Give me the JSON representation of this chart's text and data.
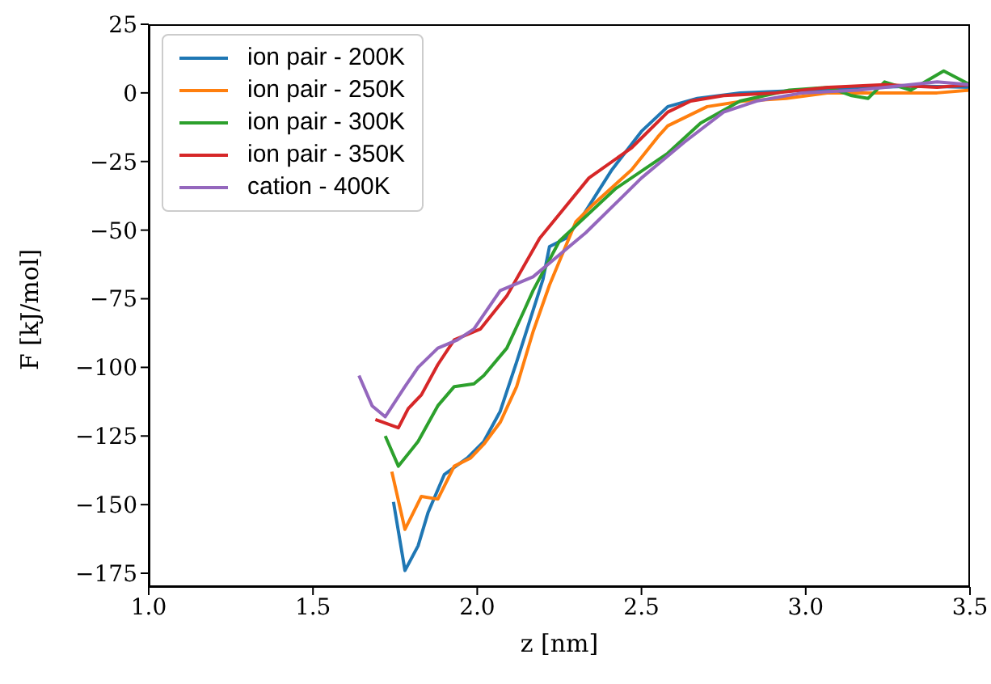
{
  "chart_data": {
    "type": "line",
    "xlabel": "z [nm]",
    "ylabel": "F [kJ/mol]",
    "xlim": [
      1.0,
      3.5
    ],
    "ylim": [
      -180,
      25
    ],
    "xticks": [
      {
        "value": 1.0,
        "label": "1.0"
      },
      {
        "value": 1.5,
        "label": "1.5"
      },
      {
        "value": 2.0,
        "label": "2.0"
      },
      {
        "value": 2.5,
        "label": "2.5"
      },
      {
        "value": 3.0,
        "label": "3.0"
      },
      {
        "value": 3.5,
        "label": "3.5"
      }
    ],
    "yticks": [
      -175,
      -150,
      -125,
      -100,
      -75,
      -50,
      -25,
      0,
      25
    ],
    "grid": false,
    "legend": "top left",
    "marker": "none",
    "line_style": "solid",
    "series": [
      {
        "name": "ion pair - 200K",
        "color": "#1f77b4",
        "x": [
          1.745,
          1.78,
          1.82,
          1.85,
          1.9,
          1.97,
          2.02,
          2.07,
          2.12,
          2.16,
          2.2,
          2.22,
          2.27,
          2.32,
          2.41,
          2.5,
          2.58,
          2.67,
          2.8,
          3.0,
          3.2,
          3.35,
          3.5
        ],
        "values": [
          -149,
          -174,
          -165,
          -153,
          -139,
          -133,
          -127,
          -116,
          -98,
          -83,
          -68,
          -56,
          -53,
          -45,
          -28,
          -14,
          -5,
          -2,
          0,
          1,
          2,
          2.5,
          2
        ]
      },
      {
        "name": "ion pair - 250K",
        "color": "#ff7f0e",
        "x": [
          1.74,
          1.78,
          1.83,
          1.88,
          1.93,
          1.98,
          2.02,
          2.07,
          2.12,
          2.17,
          2.22,
          2.3,
          2.35,
          2.47,
          2.55,
          2.58,
          2.7,
          2.81,
          2.94,
          3.07,
          3.24,
          3.4,
          3.5
        ],
        "values": [
          -138,
          -159,
          -147,
          -148,
          -136,
          -133,
          -128,
          -120,
          -107,
          -87,
          -70,
          -47,
          -41,
          -28,
          -16,
          -12,
          -5,
          -3,
          -2,
          0,
          0,
          0,
          1
        ]
      },
      {
        "name": "ion pair - 300K",
        "color": "#2ca02c",
        "x": [
          1.72,
          1.76,
          1.82,
          1.88,
          1.93,
          1.99,
          2.02,
          2.09,
          2.14,
          2.17,
          2.25,
          2.42,
          2.58,
          2.68,
          2.8,
          2.95,
          3.07,
          3.14,
          3.19,
          3.24,
          3.32,
          3.42,
          3.5
        ],
        "values": [
          -125,
          -136,
          -127,
          -114,
          -107,
          -106,
          -103,
          -93,
          -80,
          -72,
          -54,
          -35,
          -22,
          -11,
          -3,
          1,
          2,
          -1,
          -2,
          4,
          1,
          8,
          3
        ]
      },
      {
        "name": "ion pair - 350K",
        "color": "#d62728",
        "x": [
          1.69,
          1.76,
          1.79,
          1.83,
          1.88,
          1.93,
          2.01,
          2.07,
          2.09,
          2.19,
          2.34,
          2.47,
          2.58,
          2.65,
          2.75,
          2.91,
          3.07,
          3.24,
          3.4,
          3.5
        ],
        "values": [
          -119,
          -122,
          -115,
          -110,
          -99,
          -90,
          -86,
          -77,
          -74,
          -53,
          -31,
          -20,
          -7,
          -3,
          -1,
          0,
          2,
          3,
          2,
          3
        ]
      },
      {
        "name": "cation - 400K",
        "color": "#9467bd",
        "x": [
          1.64,
          1.68,
          1.72,
          1.78,
          1.82,
          1.88,
          1.94,
          1.99,
          2.07,
          2.17,
          2.33,
          2.5,
          2.63,
          2.75,
          2.85,
          2.99,
          3.16,
          3.4,
          3.5
        ],
        "values": [
          -103,
          -114,
          -118,
          -107,
          -100,
          -93,
          -90,
          -86,
          -72,
          -67,
          -51,
          -31,
          -18,
          -7,
          -3,
          0,
          1,
          4,
          3
        ]
      }
    ]
  }
}
